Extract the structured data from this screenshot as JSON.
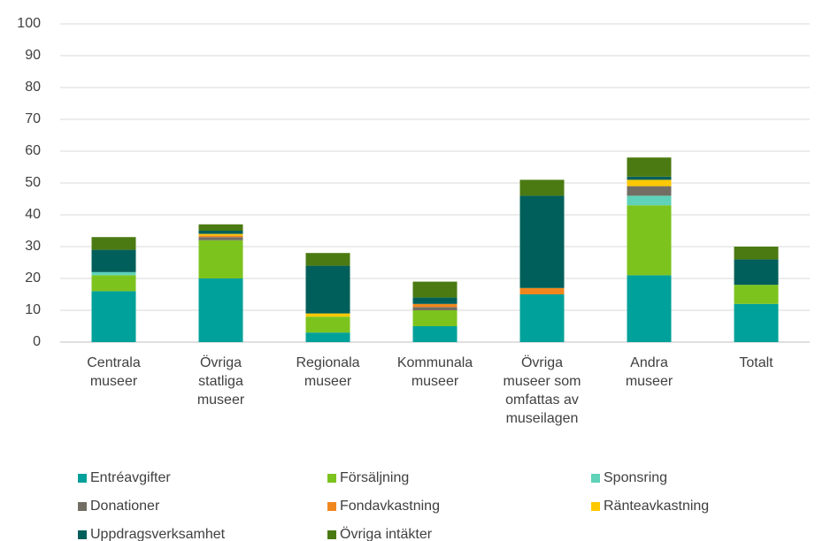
{
  "chart_data": {
    "type": "stacked_bar",
    "categories": [
      "Centrala museer",
      "Övriga statliga museer",
      "Regionala museer",
      "Kommunala museer",
      "Övriga museer som omfattas av museilagen",
      "Andra museer",
      "Totalt"
    ],
    "series": [
      {
        "name": "Entréavgifter",
        "color": "#00a19a",
        "values": [
          16,
          20,
          3,
          5,
          15,
          21,
          12
        ]
      },
      {
        "name": "Försäljning",
        "color": "#7dc31e",
        "values": [
          5,
          12,
          5,
          5,
          0,
          22,
          6
        ]
      },
      {
        "name": "Sponsring",
        "color": "#5fd2b9",
        "values": [
          1,
          0,
          0,
          0,
          0,
          3,
          0
        ]
      },
      {
        "name": "Donationer",
        "color": "#736e64",
        "values": [
          0,
          1,
          0,
          1,
          0,
          3,
          0
        ]
      },
      {
        "name": "Fondavkastning",
        "color": "#f0871e",
        "values": [
          0,
          0.5,
          0,
          1,
          2,
          0,
          0
        ]
      },
      {
        "name": "Ränteavkastning",
        "color": "#ffc800",
        "values": [
          0,
          0.5,
          1,
          0,
          0,
          2,
          0
        ]
      },
      {
        "name": "Uppdragsverksamhet",
        "color": "#005f5a",
        "values": [
          7,
          1,
          15,
          2,
          29,
          1,
          8
        ]
      },
      {
        "name": "Övriga intäkter",
        "color": "#4b7a12",
        "values": [
          4,
          2,
          4,
          5,
          5,
          6,
          4
        ]
      }
    ],
    "ylim": [
      0,
      100
    ],
    "yticks": [
      0,
      10,
      20,
      30,
      40,
      50,
      60,
      70,
      80,
      90,
      100
    ],
    "grid": true,
    "legend": "bottom"
  }
}
